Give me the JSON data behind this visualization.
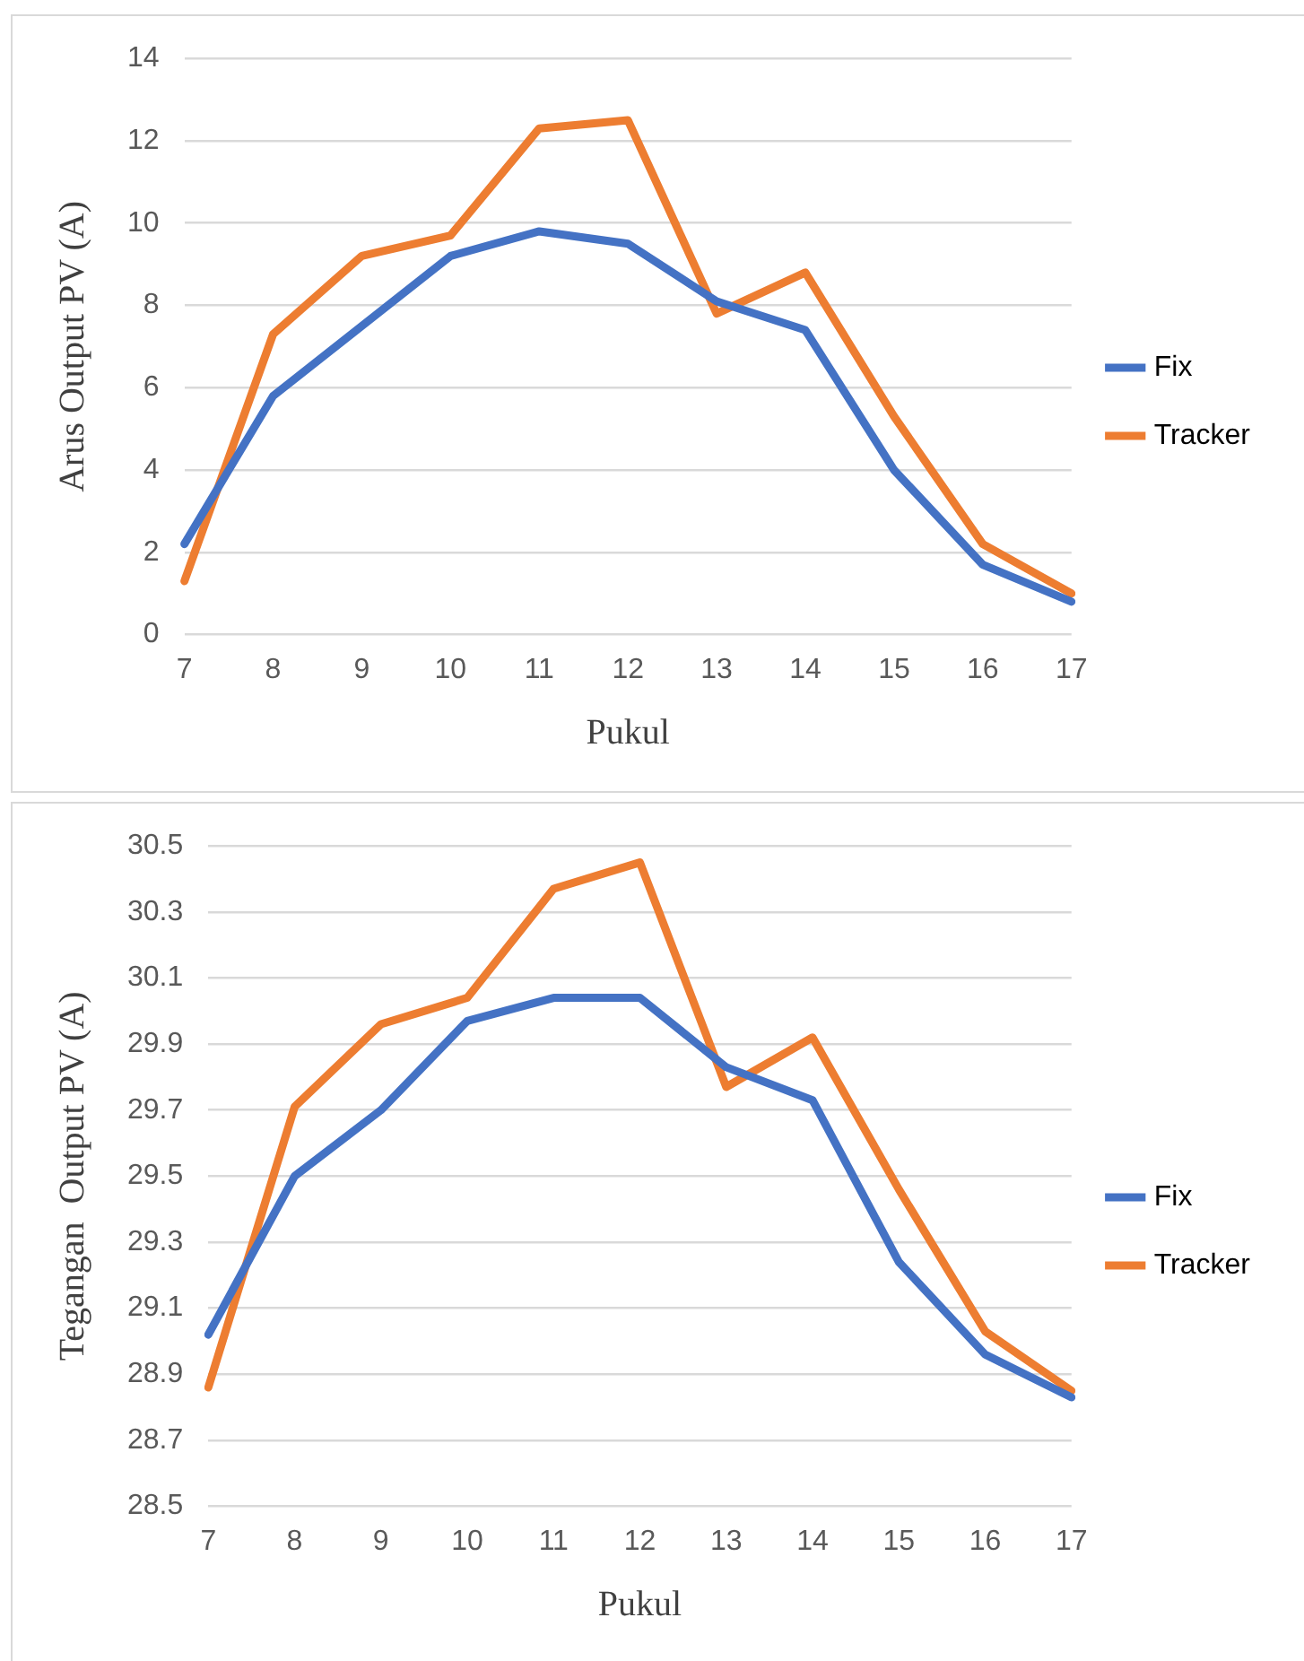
{
  "chart_data": [
    {
      "type": "line",
      "xlabel": "Pukul",
      "ylabel": "Arus Output PV (A)",
      "categories": [
        "7",
        "8",
        "9",
        "10",
        "11",
        "12",
        "13",
        "14",
        "15",
        "16",
        "17"
      ],
      "series": [
        {
          "name": "Fix",
          "color": "#4472c4",
          "values": [
            2.2,
            5.8,
            7.5,
            9.2,
            9.8,
            9.5,
            8.1,
            7.4,
            4.0,
            1.7,
            0.8
          ]
        },
        {
          "name": "Tracker",
          "color": "#ed7d31",
          "values": [
            1.3,
            7.3,
            9.2,
            9.7,
            12.3,
            12.5,
            7.8,
            8.8,
            5.3,
            2.2,
            1.0
          ]
        }
      ],
      "ylim": [
        0,
        14
      ],
      "yticks": [
        0,
        2,
        4,
        6,
        8,
        10,
        12,
        14
      ],
      "grid": "y",
      "legend": "right",
      "marker": "none"
    },
    {
      "type": "line",
      "xlabel": "Pukul",
      "ylabel": "Tegangan  Output PV (A)",
      "categories": [
        "7",
        "8",
        "9",
        "10",
        "11",
        "12",
        "13",
        "14",
        "15",
        "16",
        "17"
      ],
      "series": [
        {
          "name": "Fix",
          "color": "#4472c4",
          "values": [
            29.02,
            29.5,
            29.7,
            29.97,
            30.04,
            30.04,
            29.83,
            29.73,
            29.24,
            28.96,
            28.83
          ]
        },
        {
          "name": "Tracker",
          "color": "#ed7d31",
          "values": [
            28.86,
            29.71,
            29.96,
            30.04,
            30.37,
            30.45,
            29.77,
            29.92,
            29.46,
            29.03,
            28.85
          ]
        }
      ],
      "ylim": [
        28.5,
        30.5
      ],
      "yticks": [
        {
          "value": 28.5,
          "label": "28.5"
        },
        {
          "value": 28.7,
          "label": "28.7"
        },
        {
          "value": 28.9,
          "label": "28.9"
        },
        {
          "value": 29.1,
          "label": "29.1"
        },
        {
          "value": 29.3,
          "label": "29.3"
        },
        {
          "value": 29.5,
          "label": "29.5"
        },
        {
          "value": 29.7,
          "label": "29.7"
        },
        {
          "value": 29.9,
          "label": "29.9"
        },
        {
          "value": 30.1,
          "label": "30.1"
        },
        {
          "value": 30.3,
          "label": "30.3"
        },
        {
          "value": 30.5,
          "label": "30.5"
        }
      ],
      "grid": "y",
      "legend": "right",
      "marker": "none"
    }
  ]
}
